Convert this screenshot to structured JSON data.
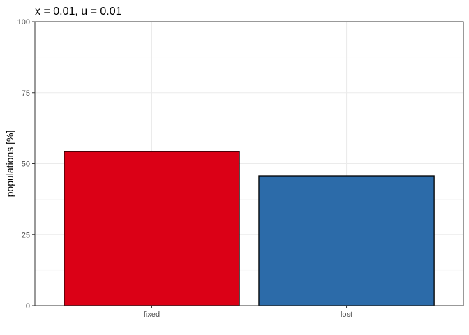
{
  "chart_data": {
    "type": "bar",
    "title": "x = 0.01, u = 0.01",
    "xlabel": "",
    "ylabel": "populations [%]",
    "categories": [
      "fixed",
      "lost"
    ],
    "values": [
      54.3,
      45.7
    ],
    "colors": [
      "#DB0016",
      "#2C6BA9"
    ],
    "ylim": [
      0,
      100
    ],
    "yticks": [
      0,
      25,
      50,
      75,
      100
    ],
    "yminor": [
      12.5,
      37.5,
      62.5,
      87.5
    ],
    "grid": true,
    "legend": "none"
  }
}
